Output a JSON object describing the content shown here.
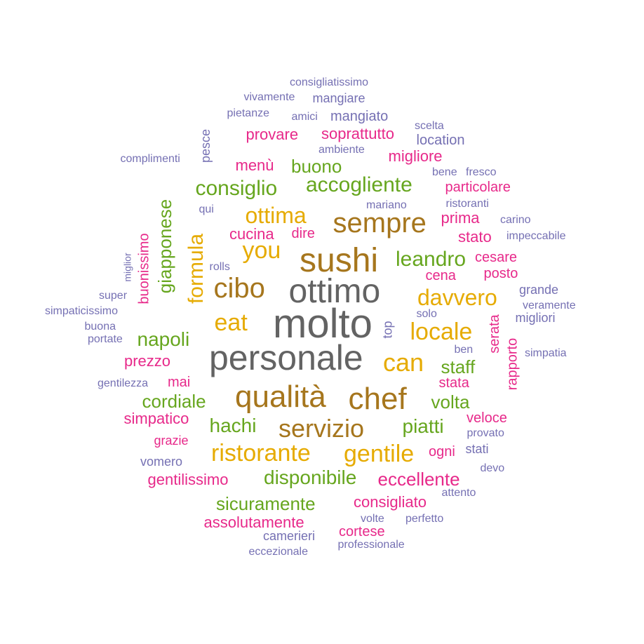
{
  "chart_data": {
    "type": "wordcloud",
    "palette": {
      "c1": "#636363",
      "c2": "#A6761D",
      "c3": "#E6AB02",
      "c4": "#66A61E",
      "c5": "#E7298A",
      "c6": "#7570B3"
    },
    "words": [
      {
        "text": "molto",
        "group": "c1",
        "vertical": false
      },
      {
        "text": "personale",
        "group": "c1",
        "vertical": false
      },
      {
        "text": "ottimo",
        "group": "c1",
        "vertical": false
      },
      {
        "text": "sushi",
        "group": "c2",
        "vertical": false
      },
      {
        "text": "qualità",
        "group": "c2",
        "vertical": false
      },
      {
        "text": "chef",
        "group": "c2",
        "vertical": false
      },
      {
        "text": "sempre",
        "group": "c2",
        "vertical": false
      },
      {
        "text": "servizio",
        "group": "c2",
        "vertical": false
      },
      {
        "text": "cibo",
        "group": "c2",
        "vertical": false
      },
      {
        "text": "ristorante",
        "group": "c3",
        "vertical": false
      },
      {
        "text": "can",
        "group": "c3",
        "vertical": false
      },
      {
        "text": "locale",
        "group": "c3",
        "vertical": false
      },
      {
        "text": "you",
        "group": "c3",
        "vertical": false
      },
      {
        "text": "eat",
        "group": "c3",
        "vertical": false
      },
      {
        "text": "ottima",
        "group": "c3",
        "vertical": false
      },
      {
        "text": "gentile",
        "group": "c3",
        "vertical": false
      },
      {
        "text": "davvero",
        "group": "c3",
        "vertical": false
      },
      {
        "text": "formula",
        "group": "c3",
        "vertical": true
      },
      {
        "text": "accogliente",
        "group": "c4",
        "vertical": false
      },
      {
        "text": "consiglio",
        "group": "c4",
        "vertical": false
      },
      {
        "text": "leandro",
        "group": "c4",
        "vertical": false
      },
      {
        "text": "giapponese",
        "group": "c4",
        "vertical": true
      },
      {
        "text": "napoli",
        "group": "c4",
        "vertical": false
      },
      {
        "text": "piatti",
        "group": "c4",
        "vertical": false
      },
      {
        "text": "staff",
        "group": "c4",
        "vertical": false
      },
      {
        "text": "volta",
        "group": "c4",
        "vertical": false
      },
      {
        "text": "hachi",
        "group": "c4",
        "vertical": false
      },
      {
        "text": "cordiale",
        "group": "c4",
        "vertical": false
      },
      {
        "text": "disponibile",
        "group": "c4",
        "vertical": false
      },
      {
        "text": "sicuramente",
        "group": "c4",
        "vertical": false
      },
      {
        "text": "buono",
        "group": "c4",
        "vertical": false
      },
      {
        "text": "eccellente",
        "group": "c5",
        "vertical": false
      },
      {
        "text": "cucina",
        "group": "c5",
        "vertical": false
      },
      {
        "text": "migliore",
        "group": "c5",
        "vertical": false
      },
      {
        "text": "particolare",
        "group": "c5",
        "vertical": false
      },
      {
        "text": "prima",
        "group": "c5",
        "vertical": false
      },
      {
        "text": "stato",
        "group": "c5",
        "vertical": false
      },
      {
        "text": "dire",
        "group": "c5",
        "vertical": false
      },
      {
        "text": "cena",
        "group": "c5",
        "vertical": false
      },
      {
        "text": "cesare",
        "group": "c5",
        "vertical": false
      },
      {
        "text": "posto",
        "group": "c5",
        "vertical": false
      },
      {
        "text": "serata",
        "group": "c5",
        "vertical": true
      },
      {
        "text": "rapporto",
        "group": "c5",
        "vertical": true
      },
      {
        "text": "prezzo",
        "group": "c5",
        "vertical": false
      },
      {
        "text": "mai",
        "group": "c5",
        "vertical": false
      },
      {
        "text": "stata",
        "group": "c5",
        "vertical": false
      },
      {
        "text": "simpatico",
        "group": "c5",
        "vertical": false
      },
      {
        "text": "veloce",
        "group": "c5",
        "vertical": false
      },
      {
        "text": "ogni",
        "group": "c5",
        "vertical": false
      },
      {
        "text": "grazie",
        "group": "c5",
        "vertical": false
      },
      {
        "text": "gentilissimo",
        "group": "c5",
        "vertical": false
      },
      {
        "text": "consigliato",
        "group": "c5",
        "vertical": false
      },
      {
        "text": "assolutamente",
        "group": "c5",
        "vertical": false
      },
      {
        "text": "cortese",
        "group": "c5",
        "vertical": false
      },
      {
        "text": "provare",
        "group": "c5",
        "vertical": false
      },
      {
        "text": "soprattutto",
        "group": "c5",
        "vertical": false
      },
      {
        "text": "menù",
        "group": "c5",
        "vertical": false
      },
      {
        "text": "buonissimo",
        "group": "c5",
        "vertical": true
      },
      {
        "text": "consigliatissimo",
        "group": "c6",
        "vertical": false
      },
      {
        "text": "vivamente",
        "group": "c6",
        "vertical": false
      },
      {
        "text": "mangiare",
        "group": "c6",
        "vertical": false
      },
      {
        "text": "pietanze",
        "group": "c6",
        "vertical": false
      },
      {
        "text": "amici",
        "group": "c6",
        "vertical": false
      },
      {
        "text": "mangiato",
        "group": "c6",
        "vertical": false
      },
      {
        "text": "scelta",
        "group": "c6",
        "vertical": false
      },
      {
        "text": "location",
        "group": "c6",
        "vertical": false
      },
      {
        "text": "ambiente",
        "group": "c6",
        "vertical": false
      },
      {
        "text": "complimenti",
        "group": "c6",
        "vertical": false
      },
      {
        "text": "pesce",
        "group": "c6",
        "vertical": true
      },
      {
        "text": "bene",
        "group": "c6",
        "vertical": false
      },
      {
        "text": "fresco",
        "group": "c6",
        "vertical": false
      },
      {
        "text": "qui",
        "group": "c6",
        "vertical": false
      },
      {
        "text": "mariano",
        "group": "c6",
        "vertical": false
      },
      {
        "text": "ristoranti",
        "group": "c6",
        "vertical": false
      },
      {
        "text": "carino",
        "group": "c6",
        "vertical": false
      },
      {
        "text": "impeccabile",
        "group": "c6",
        "vertical": false
      },
      {
        "text": "miglior",
        "group": "c6",
        "vertical": true
      },
      {
        "text": "rolls",
        "group": "c6",
        "vertical": false
      },
      {
        "text": "super",
        "group": "c6",
        "vertical": false
      },
      {
        "text": "simpaticissimo",
        "group": "c6",
        "vertical": false
      },
      {
        "text": "buona",
        "group": "c6",
        "vertical": false
      },
      {
        "text": "portate",
        "group": "c6",
        "vertical": false
      },
      {
        "text": "grande",
        "group": "c6",
        "vertical": false
      },
      {
        "text": "veramente",
        "group": "c6",
        "vertical": false
      },
      {
        "text": "migliori",
        "group": "c6",
        "vertical": false
      },
      {
        "text": "solo",
        "group": "c6",
        "vertical": false
      },
      {
        "text": "top",
        "group": "c6",
        "vertical": true
      },
      {
        "text": "ben",
        "group": "c6",
        "vertical": false
      },
      {
        "text": "simpatia",
        "group": "c6",
        "vertical": false
      },
      {
        "text": "gentilezza",
        "group": "c6",
        "vertical": false
      },
      {
        "text": "provato",
        "group": "c6",
        "vertical": false
      },
      {
        "text": "stati",
        "group": "c6",
        "vertical": false
      },
      {
        "text": "vomero",
        "group": "c6",
        "vertical": false
      },
      {
        "text": "devo",
        "group": "c6",
        "vertical": false
      },
      {
        "text": "attento",
        "group": "c6",
        "vertical": false
      },
      {
        "text": "volte",
        "group": "c6",
        "vertical": false
      },
      {
        "text": "perfetto",
        "group": "c6",
        "vertical": false
      },
      {
        "text": "camerieri",
        "group": "c6",
        "vertical": false
      },
      {
        "text": "professionale",
        "group": "c6",
        "vertical": false
      },
      {
        "text": "eccezionale",
        "group": "c6",
        "vertical": false
      }
    ]
  }
}
